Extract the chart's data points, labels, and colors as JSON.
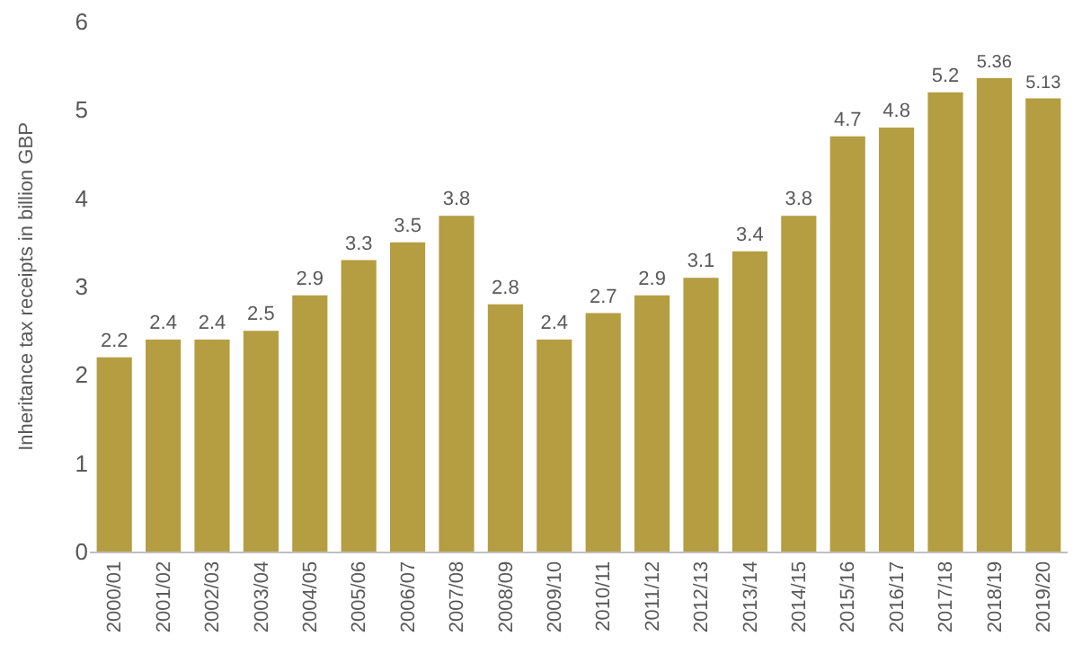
{
  "chart_data": {
    "type": "bar",
    "ylabel": "Inheritance tax receipts in billion GBP",
    "categories": [
      "2000/01",
      "2001/02",
      "2002/03",
      "2003/04",
      "2004/05",
      "2005/06",
      "2006/07",
      "2007/08",
      "2008/09",
      "2009/10",
      "2010/11",
      "2011/12",
      "2012/13",
      "2013/14",
      "2014/15",
      "2015/16",
      "2016/17",
      "2017/18",
      "2018/19",
      "2019/20"
    ],
    "values": [
      2.2,
      2.4,
      2.4,
      2.5,
      2.9,
      3.3,
      3.5,
      3.8,
      2.8,
      2.4,
      2.7,
      2.9,
      3.1,
      3.4,
      3.8,
      4.7,
      4.8,
      5.2,
      5.36,
      5.13
    ],
    "color": "#b59d42",
    "ylim": [
      0,
      6
    ],
    "yticks": [
      0,
      1,
      2,
      3,
      4,
      5,
      6
    ],
    "grid": false,
    "data_labels": true
  }
}
